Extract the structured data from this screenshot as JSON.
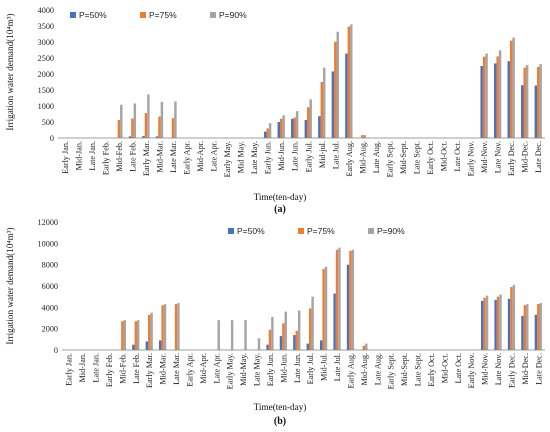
{
  "chart_data": [
    {
      "type": "bar",
      "panel_label": "(a)",
      "xlabel": "Time(ten-day)",
      "ylabel": "Irrigation water demand(10⁴m³)",
      "ylim": [
        0,
        4000
      ],
      "yticks": [
        "0",
        "500",
        "1000",
        "1500",
        "2000",
        "2500",
        "3000",
        "3500",
        "4000"
      ],
      "grid": false,
      "legend_position": "top-left",
      "categories": [
        "Early Jan.",
        "Mid-Jan.",
        "Late Jan.",
        "Early Feb.",
        "Mid-Feb.",
        "Late Feb.",
        "Early Mar.",
        "Mid-Mar.",
        "Late Mar.",
        "Early Apr.",
        "Mid-Apr.",
        "Late Apr.",
        "Early May.",
        "Mid May.",
        "Late May.",
        "Early Jun.",
        "Mid-Jun.",
        "Late Jun.",
        "Early Jul.",
        "Mid-jul.",
        "Late Jul.",
        "Early Aug.",
        "Mid-Aug.",
        "Late Aug.",
        "Early Sept.",
        "Mid-Sept.",
        "Late Sept.",
        "Early Oct.",
        "Mid-Oct.",
        "Late Oct.",
        "Early Nov.",
        "Mid-Nov.",
        "Late Nov.",
        "Early Dec.",
        "Mid-Dec.",
        "Late Dec."
      ],
      "series": [
        {
          "name": "P=50%",
          "color": "#4472c4",
          "values": [
            0,
            0,
            0,
            0,
            0,
            50,
            60,
            50,
            0,
            0,
            0,
            0,
            0,
            0,
            0,
            200,
            500,
            600,
            560,
            680,
            2080,
            2640,
            0,
            0,
            0,
            0,
            0,
            0,
            0,
            0,
            0,
            2250,
            2330,
            2400,
            1650,
            1640
          ]
        },
        {
          "name": "P=75%",
          "color": "#ed7d31",
          "values": [
            0,
            0,
            0,
            0,
            560,
            610,
            780,
            670,
            620,
            0,
            0,
            0,
            0,
            0,
            0,
            300,
            600,
            640,
            960,
            1750,
            3010,
            3480,
            90,
            0,
            0,
            0,
            0,
            0,
            0,
            0,
            0,
            2540,
            2550,
            3040,
            2200,
            2220
          ]
        },
        {
          "name": "P=90%",
          "color": "#a5a5a5",
          "values": [
            0,
            0,
            0,
            0,
            1040,
            1080,
            1360,
            1130,
            1140,
            0,
            0,
            0,
            0,
            0,
            0,
            460,
            710,
            840,
            1210,
            2200,
            3320,
            3550,
            90,
            0,
            0,
            0,
            0,
            0,
            0,
            0,
            0,
            2640,
            2740,
            3140,
            2280,
            2310
          ]
        }
      ]
    },
    {
      "type": "bar",
      "panel_label": "(b)",
      "xlabel": "Time(ten-day)",
      "ylabel": "Irrigation water demand(10⁴m³)",
      "ylim": [
        0,
        12000
      ],
      "yticks": [
        "0",
        "2000",
        "4000",
        "6000",
        "8000",
        "10000",
        "12000"
      ],
      "grid": false,
      "legend_position": "top-center",
      "categories": [
        "Early Jan.",
        "Mid-Jan.",
        "Late Jan.",
        "Early Feb.",
        "Mid-Feb.",
        "Late Feb.",
        "Early Mar.",
        "Mid-Mar.",
        "Late Mar.",
        "Early Apr.",
        "Mid-Apr.",
        "Late Apr.",
        "Early May.",
        "Mid-May.",
        "Late May.",
        "Early Jun.",
        "Mid-Jun.",
        "Late Jun.",
        "Early Jul.",
        "Mid-Jul.",
        "Late Jul.",
        "Early Aug.",
        "Mid-Aug.",
        "Late Aug.",
        "Early Sept.",
        "Mid-Sept.",
        "Late Sept.",
        "Early Oct.",
        "Mid-Oct.",
        "Late Oct.",
        "Early Nov.",
        "Mid-Nov.",
        "Late Nov.",
        "Early Dec.",
        "Mid-Dec.",
        "Late Dec."
      ],
      "series": [
        {
          "name": "P=50%",
          "color": "#4472c4",
          "values": [
            0,
            0,
            0,
            0,
            0,
            500,
            800,
            900,
            0,
            0,
            0,
            0,
            0,
            0,
            0,
            500,
            1300,
            1400,
            600,
            900,
            5300,
            8000,
            0,
            0,
            0,
            0,
            0,
            0,
            0,
            0,
            0,
            4600,
            4700,
            4800,
            3200,
            3300
          ]
        },
        {
          "name": "P=75%",
          "color": "#ed7d31",
          "values": [
            0,
            0,
            0,
            0,
            2700,
            2700,
            3300,
            4200,
            4300,
            0,
            0,
            0,
            0,
            0,
            0,
            1900,
            2500,
            1800,
            3900,
            7600,
            9400,
            9300,
            400,
            0,
            0,
            0,
            0,
            0,
            0,
            0,
            0,
            4900,
            5000,
            5900,
            4200,
            4300
          ]
        },
        {
          "name": "P=90%",
          "color": "#a5a5a5",
          "values": [
            0,
            0,
            0,
            0,
            2800,
            2800,
            3500,
            4300,
            4400,
            0,
            0,
            2800,
            2800,
            2800,
            1100,
            3100,
            3600,
            3700,
            5000,
            7800,
            9600,
            9400,
            600,
            0,
            0,
            0,
            0,
            0,
            0,
            0,
            0,
            5100,
            5200,
            6100,
            4300,
            4400
          ]
        }
      ]
    }
  ]
}
